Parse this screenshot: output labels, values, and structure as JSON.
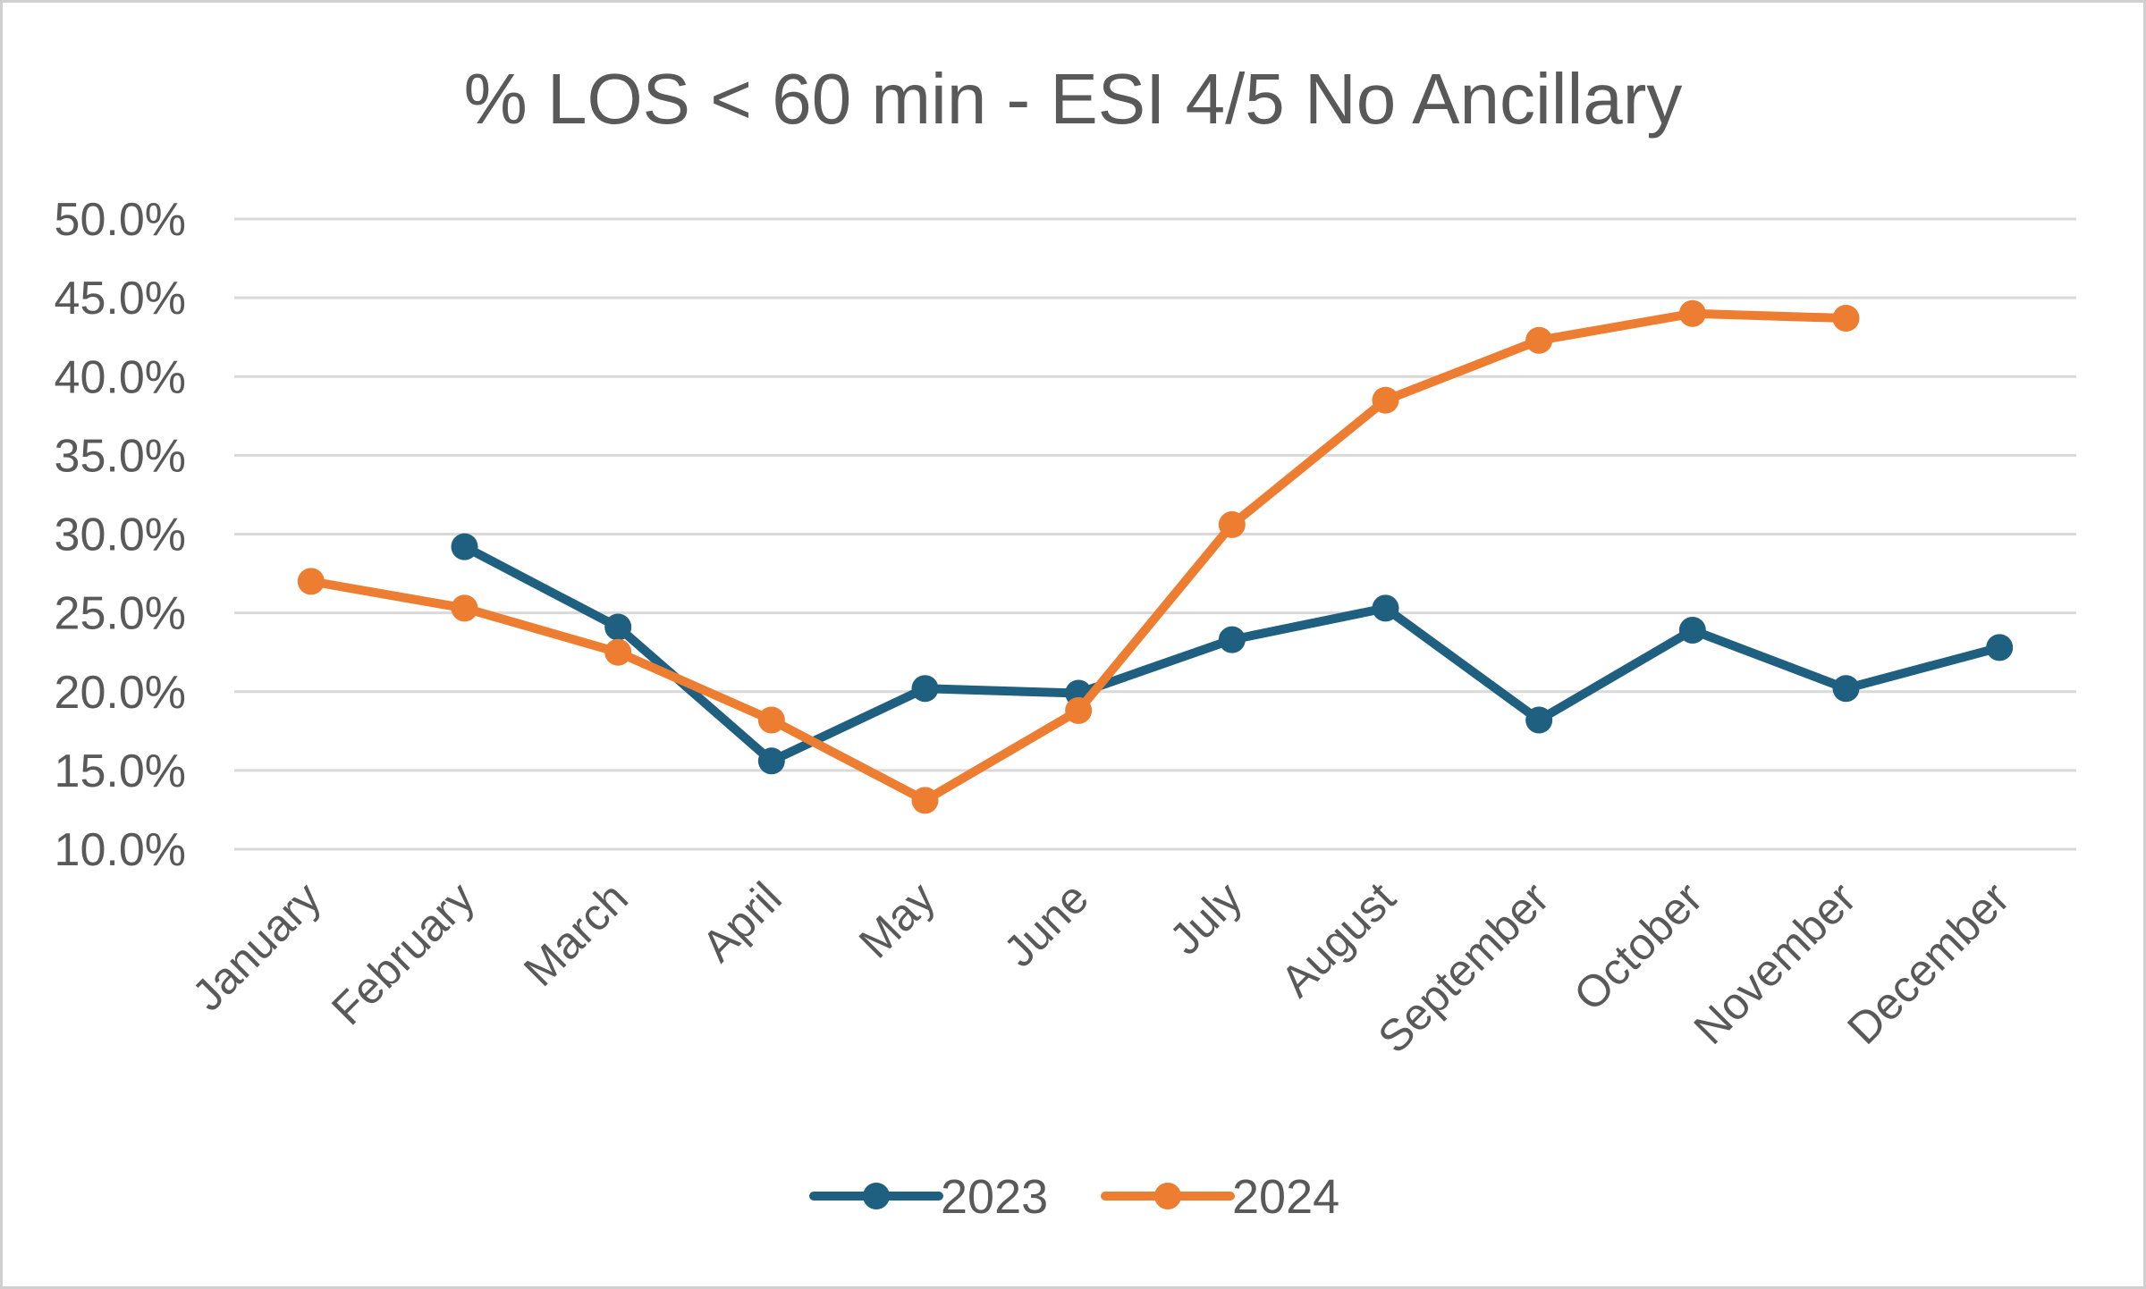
{
  "chart_data": {
    "type": "line",
    "title": "% LOS < 60 min - ESI 4/5 No Ancillary",
    "xlabel": "",
    "ylabel": "",
    "ylim": [
      10,
      50
    ],
    "yticks": [
      10,
      15,
      20,
      25,
      30,
      35,
      40,
      45,
      50
    ],
    "ytick_labels": [
      "10.0%",
      "15.0%",
      "20.0%",
      "25.0%",
      "30.0%",
      "35.0%",
      "40.0%",
      "45.0%",
      "50.0%"
    ],
    "categories": [
      "January",
      "February",
      "March",
      "April",
      "May",
      "June",
      "July",
      "August",
      "September",
      "October",
      "November",
      "December"
    ],
    "grid": true,
    "legend_position": "bottom",
    "series": [
      {
        "name": "2023",
        "color": "#1f5f80",
        "values": [
          null,
          29.2,
          24.1,
          15.6,
          20.2,
          19.9,
          23.3,
          25.3,
          18.2,
          23.9,
          20.2,
          22.8
        ]
      },
      {
        "name": "2024",
        "color": "#ed7d31",
        "values": [
          27.0,
          25.3,
          22.5,
          18.2,
          13.1,
          18.8,
          30.6,
          38.5,
          42.3,
          44.0,
          43.7,
          null
        ]
      }
    ]
  }
}
